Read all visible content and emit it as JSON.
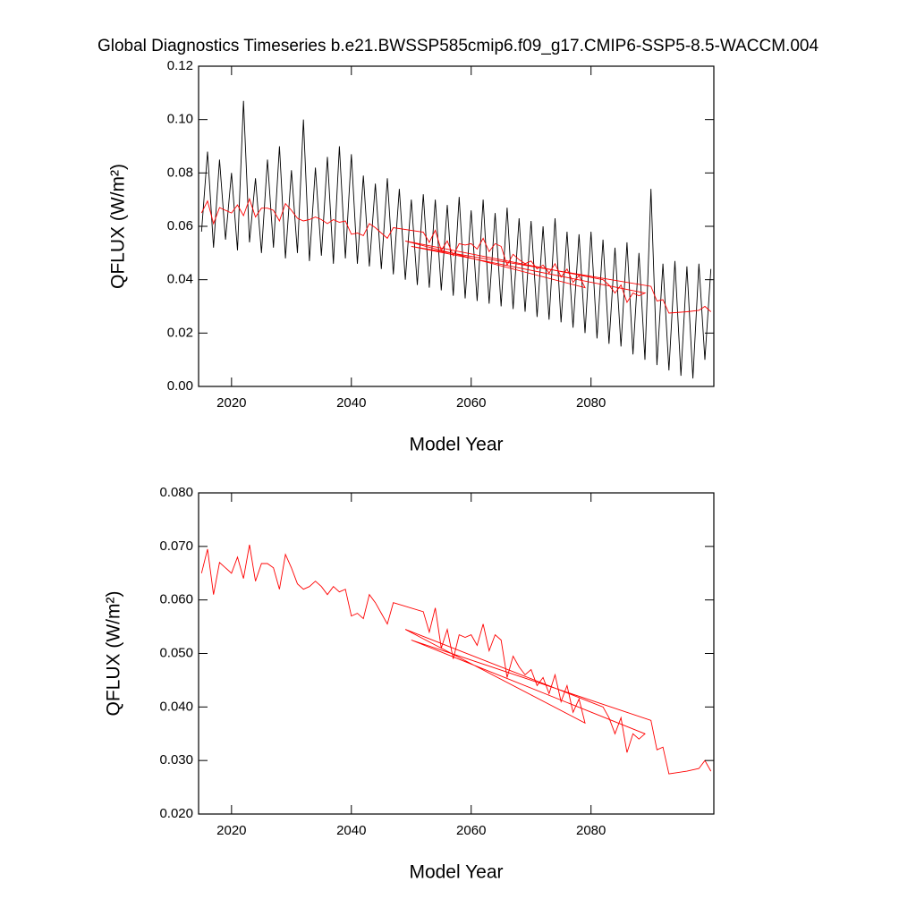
{
  "chart_data": [
    {
      "type": "line",
      "title": "Global Diagnostics Timeseries b.e21.BWSSP585cmip6.f09_g17.CMIP6-SSP5-8.5-WACCM.004",
      "x_label": "Model Year",
      "y_label": "QFLUX (W/m²)",
      "xlim": [
        2014.5,
        2100.5
      ],
      "ylim": [
        0,
        0.12
      ],
      "xticks": [
        2020,
        2040,
        2060,
        2080
      ],
      "yticks": [
        {
          "value": 0,
          "label": "0.00"
        },
        {
          "value": 0.02,
          "label": "0.02"
        },
        {
          "value": 0.04,
          "label": "0.04"
        },
        {
          "value": 0.06,
          "label": "0.06"
        },
        {
          "value": 0.08,
          "label": "0.08"
        },
        {
          "value": 0.1,
          "label": "0.10"
        },
        {
          "value": 0.12,
          "label": "0.12"
        }
      ],
      "series": [
        {
          "color": "#000000",
          "x": [
            2015,
            2016,
            2017,
            2018,
            2019,
            2020,
            2021,
            2022,
            2023,
            2024,
            2025,
            2026,
            2027,
            2028,
            2029,
            2030,
            2031,
            2032,
            2033,
            2034,
            2035,
            2036,
            2037,
            2038,
            2039,
            2040,
            2041,
            2042,
            2043,
            2044,
            2045,
            2046,
            2047,
            2048,
            2049,
            2050,
            2051,
            2052,
            2053,
            2054,
            2055,
            2056,
            2057,
            2058,
            2059,
            2060,
            2061,
            2062,
            2063,
            2064,
            2065,
            2066,
            2067,
            2068,
            2069,
            2070,
            2071,
            2072,
            2073,
            2074,
            2075,
            2076,
            2077,
            2078,
            2079,
            2080,
            2081,
            2082,
            2083,
            2084,
            2085,
            2086,
            2087,
            2088,
            2089,
            2090,
            2091,
            2092,
            2093,
            2094,
            2095,
            2096,
            2097,
            2098,
            2099,
            2100
          ],
          "values": [
            0.058,
            0.088,
            0.052,
            0.085,
            0.055,
            0.08,
            0.051,
            0.107,
            0.054,
            0.078,
            0.05,
            0.085,
            0.052,
            0.09,
            0.048,
            0.081,
            0.05,
            0.1,
            0.047,
            0.082,
            0.049,
            0.086,
            0.046,
            0.09,
            0.048,
            0.087,
            0.046,
            0.079,
            0.045,
            0.076,
            0.044,
            0.078,
            0.042,
            0.074,
            0.04,
            0.07,
            0.038,
            0.072,
            0.037,
            0.07,
            0.036,
            0.068,
            0.034,
            0.071,
            0.033,
            0.066,
            0.032,
            0.07,
            0.031,
            0.065,
            0.03,
            0.067,
            0.029,
            0.063,
            0.028,
            0.062,
            0.026,
            0.06,
            0.025,
            0.063,
            0.024,
            0.058,
            0.022,
            0.057,
            0.02,
            0.058,
            0.018,
            0.055,
            0.016,
            0.052,
            0.015,
            0.054,
            0.012,
            0.05,
            0.01,
            0.074,
            0.008,
            0.046,
            0.006,
            0.047,
            0.004,
            0.045,
            0.003,
            0.046,
            0.01,
            0.044
          ]
        },
        {
          "color": "#ff0000",
          "x": [
            2015,
            2016,
            2017,
            2018,
            2019,
            2020,
            2021,
            2022,
            2023,
            2024,
            2025,
            2026,
            2027,
            2028,
            2029,
            2030,
            2031,
            2032,
            2033,
            2034,
            2035,
            2036,
            2037,
            2038,
            2039,
            2040,
            2041,
            2042,
            2043,
            2044,
            2045,
            2046,
            2047,
            2052,
            2053,
            2054,
            2055,
            2056,
            2057,
            2058,
            2059,
            2060,
            2061,
            2062,
            2063,
            2064,
            2065,
            2066,
            2067,
            2068,
            2069,
            2070,
            2071,
            2072,
            2073,
            2074,
            2075,
            2076,
            2077,
            2078,
            2079,
            2049,
            2082,
            2083,
            2084,
            2085,
            2086,
            2087,
            2088,
            2089,
            2050,
            2090,
            2091,
            2092,
            2093,
            2096,
            2098,
            2099,
            2100
          ],
          "values": [
            0.065,
            0.0695,
            0.061,
            0.067,
            0.066,
            0.065,
            0.068,
            0.064,
            0.0703,
            0.0635,
            0.0668,
            0.0668,
            0.066,
            0.062,
            0.0685,
            0.066,
            0.063,
            0.062,
            0.0625,
            0.0635,
            0.0625,
            0.061,
            0.0625,
            0.0615,
            0.062,
            0.057,
            0.0575,
            0.0565,
            0.061,
            0.0595,
            0.0575,
            0.0555,
            0.0595,
            0.0578,
            0.054,
            0.0585,
            0.051,
            0.0545,
            0.049,
            0.0535,
            0.053,
            0.0535,
            0.0515,
            0.0555,
            0.0505,
            0.0535,
            0.0525,
            0.0455,
            0.0495,
            0.0475,
            0.046,
            0.047,
            0.044,
            0.0455,
            0.0425,
            0.046,
            0.041,
            0.044,
            0.039,
            0.0415,
            0.037,
            0.0545,
            0.04,
            0.038,
            0.035,
            0.038,
            0.0315,
            0.035,
            0.034,
            0.035,
            0.0525,
            0.0375,
            0.032,
            0.0325,
            0.0275,
            0.028,
            0.0285,
            0.03,
            0.028
          ]
        }
      ]
    },
    {
      "type": "line",
      "x_label": "Model Year",
      "y_label": "QFLUX (W/m²)",
      "xlim": [
        2014.5,
        2100.5
      ],
      "ylim": [
        0.02,
        0.08
      ],
      "xticks": [
        2020,
        2040,
        2060,
        2080
      ],
      "yticks": [
        {
          "value": 0.02,
          "label": "0.020"
        },
        {
          "value": 0.03,
          "label": "0.030"
        },
        {
          "value": 0.04,
          "label": "0.040"
        },
        {
          "value": 0.05,
          "label": "0.050"
        },
        {
          "value": 0.06,
          "label": "0.060"
        },
        {
          "value": 0.07,
          "label": "0.070"
        },
        {
          "value": 0.08,
          "label": "0.080"
        }
      ],
      "series": [
        {
          "color": "#ff0000",
          "x": [
            2015,
            2016,
            2017,
            2018,
            2019,
            2020,
            2021,
            2022,
            2023,
            2024,
            2025,
            2026,
            2027,
            2028,
            2029,
            2030,
            2031,
            2032,
            2033,
            2034,
            2035,
            2036,
            2037,
            2038,
            2039,
            2040,
            2041,
            2042,
            2043,
            2044,
            2045,
            2046,
            2047,
            2052,
            2053,
            2054,
            2055,
            2056,
            2057,
            2058,
            2059,
            2060,
            2061,
            2062,
            2063,
            2064,
            2065,
            2066,
            2067,
            2068,
            2069,
            2070,
            2071,
            2072,
            2073,
            2074,
            2075,
            2076,
            2077,
            2078,
            2079,
            2049,
            2082,
            2083,
            2084,
            2085,
            2086,
            2087,
            2088,
            2089,
            2050,
            2090,
            2091,
            2092,
            2093,
            2096,
            2098,
            2099,
            2100
          ],
          "values": [
            0.065,
            0.0695,
            0.061,
            0.067,
            0.066,
            0.065,
            0.068,
            0.064,
            0.0703,
            0.0635,
            0.0668,
            0.0668,
            0.066,
            0.062,
            0.0685,
            0.066,
            0.063,
            0.062,
            0.0625,
            0.0635,
            0.0625,
            0.061,
            0.0625,
            0.0615,
            0.062,
            0.057,
            0.0575,
            0.0565,
            0.061,
            0.0595,
            0.0575,
            0.0555,
            0.0595,
            0.0578,
            0.054,
            0.0585,
            0.051,
            0.0545,
            0.049,
            0.0535,
            0.053,
            0.0535,
            0.0515,
            0.0555,
            0.0505,
            0.0535,
            0.0525,
            0.0455,
            0.0495,
            0.0475,
            0.046,
            0.047,
            0.044,
            0.0455,
            0.0425,
            0.046,
            0.041,
            0.044,
            0.039,
            0.0415,
            0.037,
            0.0545,
            0.04,
            0.038,
            0.035,
            0.038,
            0.0315,
            0.035,
            0.034,
            0.035,
            0.0525,
            0.0375,
            0.032,
            0.0325,
            0.0275,
            0.028,
            0.0285,
            0.03,
            0.028
          ]
        }
      ]
    }
  ]
}
